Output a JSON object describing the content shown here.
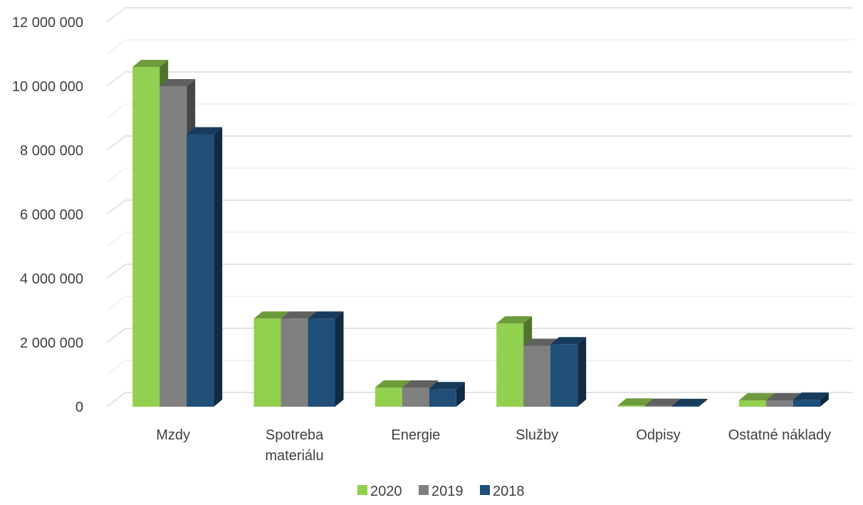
{
  "chart_data": {
    "type": "bar",
    "title": "",
    "xlabel": "",
    "ylabel": "",
    "ylim": [
      0,
      12000000
    ],
    "y_ticks": [
      "0",
      "2 000 000",
      "4 000 000",
      "6 000 000",
      "8 000 000",
      "10 000 000",
      "12 000 000"
    ],
    "y_tick_values": [
      0,
      2000000,
      4000000,
      6000000,
      8000000,
      10000000,
      12000000
    ],
    "categories": [
      [
        "Mzdy"
      ],
      [
        "Spotreba",
        "materiálu"
      ],
      [
        "Energie"
      ],
      [
        "Služby"
      ],
      [
        "Odpisy"
      ],
      [
        "Ostatné náklady"
      ]
    ],
    "series": [
      {
        "name": "2020",
        "color": "#92D050",
        "values": [
          10600000,
          2750000,
          600000,
          2600000,
          40000,
          200000
        ]
      },
      {
        "name": "2019",
        "color": "#808080",
        "values": [
          10000000,
          2750000,
          600000,
          1900000,
          30000,
          200000
        ]
      },
      {
        "name": "2018",
        "color": "#1F4E79",
        "values": [
          8500000,
          2750000,
          550000,
          1950000,
          25000,
          220000
        ]
      }
    ],
    "grid": true,
    "legend_position": "bottom",
    "style": "3d-clustered-column"
  }
}
